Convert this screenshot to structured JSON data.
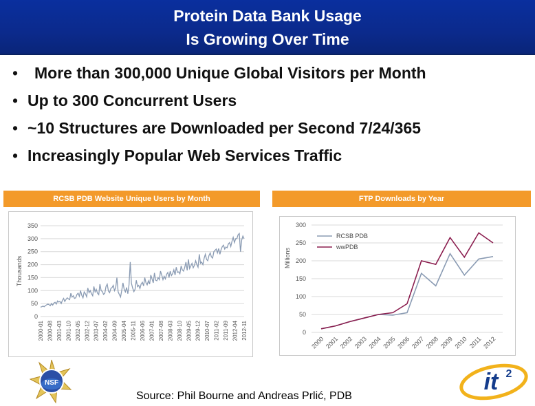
{
  "slide": {
    "title_line1": "Protein Data Bank Usage",
    "title_line2": "Is Growing Over Time",
    "bullets": [
      "More than 300,000 Unique Global Visitors per Month",
      "Up to 300 Concurrent Users",
      "~10 Structures are Downloaded per Second 7/24/365",
      "Increasingly Popular Web Services Traffic"
    ],
    "bullet_symbol": "•",
    "source": "Source: Phil Bourne and Andreas Prlić, PDB",
    "logos": {
      "left": "NSF",
      "right_main": "it",
      "right_sup": "2"
    },
    "colors": {
      "title_bg": "#0b2a8c",
      "panel_header": "#f39a2a",
      "series_a": "#8a9bb3",
      "series_b": "#8b1e4f"
    }
  },
  "chart_data": [
    {
      "type": "line",
      "title": "RCSB PDB Website Unique Users by Month",
      "ylabel": "Thousands",
      "xlabel": "",
      "ylim": [
        0,
        350
      ],
      "yticks": [
        0,
        50,
        100,
        150,
        200,
        250,
        300,
        350
      ],
      "grid": true,
      "x_ticks": [
        "2000-01",
        "2000-08",
        "2001-03",
        "2001-10",
        "2002-05",
        "2002-12",
        "2003-07",
        "2004-02",
        "2004-09",
        "2005-04",
        "2005-11",
        "2006-06",
        "2007-01",
        "2007-08",
        "2008-03",
        "2008-10",
        "2009-05",
        "2009-12",
        "2010-07",
        "2011-02",
        "2011-09",
        "2012-04",
        "2012-11"
      ],
      "series": [
        {
          "name": "",
          "color": "#8a9bb3",
          "values": [
            36,
            38,
            40,
            38,
            42,
            45,
            48,
            46,
            42,
            50,
            44,
            52,
            55,
            48,
            60,
            56,
            58,
            50,
            62,
            70,
            58,
            66,
            72,
            68,
            65,
            90,
            75,
            80,
            70,
            72,
            85,
            90,
            78,
            100,
            82,
            72,
            95,
            88,
            76,
            110,
            92,
            100,
            88,
            80,
            116,
            95,
            105,
            90,
            84,
            125,
            100,
            96,
            85,
            90,
            115,
            125,
            98,
            92,
            108,
            112,
            120,
            100,
            110,
            150,
            95,
            85,
            75,
            100,
            130,
            105,
            95,
            112,
            88,
            122,
            210,
            128,
            110,
            96,
            105,
            140,
            115,
            120,
            108,
            125,
            132,
            118,
            150,
            130,
            122,
            138,
            125,
            160,
            145,
            130,
            168,
            140,
            138,
            150,
            142,
            175,
            160,
            142,
            155,
            145,
            162,
            170,
            150,
            175,
            158,
            165,
            180,
            160,
            190,
            170,
            172,
            165,
            195,
            180,
            175,
            190,
            210,
            178,
            220,
            185,
            195,
            205,
            188,
            198,
            215,
            200,
            190,
            240,
            205,
            210,
            200,
            225,
            240,
            220,
            215,
            235,
            245,
            230,
            225,
            250,
            255,
            260,
            245,
            262,
            240,
            258,
            270,
            275,
            260,
            268,
            265,
            280,
            285,
            270,
            290,
            305,
            285,
            300,
            300,
            315,
            320,
            250,
            295,
            310,
            300
          ]
        }
      ]
    },
    {
      "type": "line",
      "title": "FTP Downloads by Year",
      "ylabel": "Millions",
      "xlabel": "",
      "ylim": [
        0,
        300
      ],
      "yticks": [
        0,
        50,
        100,
        150,
        200,
        250,
        300
      ],
      "grid": true,
      "legend_position": "top-left",
      "categories": [
        "2000",
        "2001",
        "2002",
        "2003",
        "2004",
        "2005",
        "2006",
        "2007",
        "2008",
        "2009",
        "2010",
        "2011",
        "2012"
      ],
      "series": [
        {
          "name": "RCSB PDB",
          "color": "#8a9bb3",
          "values": [
            10,
            18,
            30,
            40,
            50,
            48,
            55,
            165,
            130,
            220,
            160,
            205,
            212
          ]
        },
        {
          "name": "wwPDB",
          "color": "#8b1e4f",
          "values": [
            10,
            18,
            30,
            40,
            50,
            55,
            80,
            200,
            190,
            265,
            210,
            278,
            250
          ]
        }
      ]
    }
  ]
}
